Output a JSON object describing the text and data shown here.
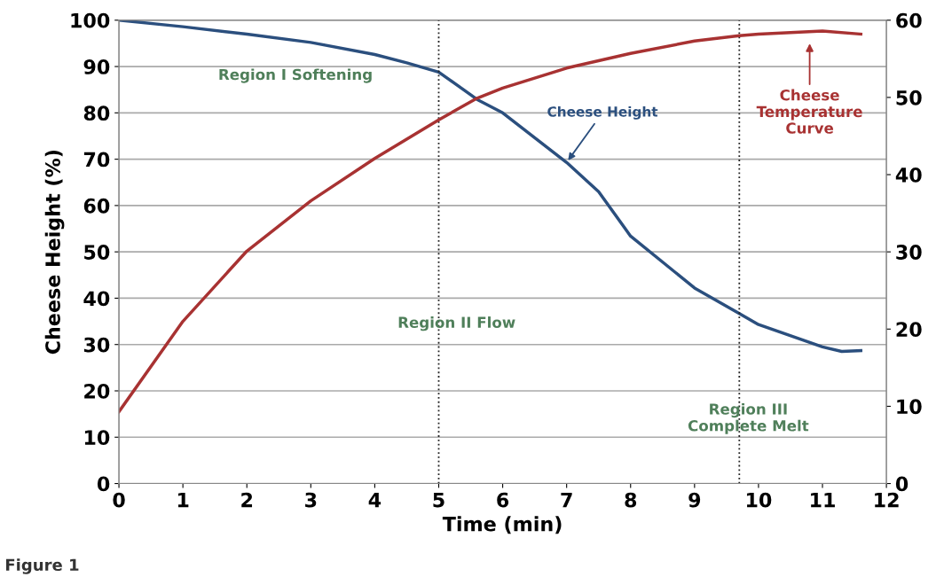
{
  "chart_data": {
    "type": "line",
    "xlabel": "Time (min)",
    "ylabel": "Cheese Height (%)",
    "xlim": [
      0,
      12
    ],
    "xticks": [
      0,
      1,
      2,
      3,
      4,
      5,
      6,
      7,
      8,
      9,
      10,
      11,
      12
    ],
    "ylim": [
      0,
      100
    ],
    "yticks": [
      0,
      10,
      20,
      30,
      40,
      50,
      60,
      70,
      80,
      90,
      100
    ],
    "y2lim": [
      0,
      60
    ],
    "y2ticks": [
      0,
      10,
      20,
      30,
      40,
      50,
      60
    ],
    "grid": "y",
    "legend": false,
    "marker": "none",
    "line_style": "solid",
    "series": [
      {
        "color": "#2b4f7e",
        "x": [
          0,
          1,
          2,
          3,
          4,
          4.5,
          5,
          5.6,
          6,
          7,
          7.5,
          8,
          9,
          9.7,
          10,
          11,
          11.3,
          11.6
        ],
        "values": [
          100,
          98.6,
          97,
          95.2,
          92.6,
          90.8,
          88.8,
          82.9,
          80,
          69.3,
          63,
          53.4,
          42.2,
          36.7,
          34.3,
          29.5,
          28.5,
          28.7
        ]
      },
      {
        "color": "#a83232",
        "axis": "y2",
        "x": [
          0,
          1,
          2,
          3,
          4,
          5,
          5.6,
          6,
          7,
          8,
          9,
          9.7,
          10,
          11,
          11.6
        ],
        "values": [
          9.3,
          21,
          30.1,
          36.6,
          42.1,
          47.1,
          49.9,
          51.2,
          53.8,
          55.7,
          57.3,
          58,
          58.2,
          58.6,
          58.2
        ]
      }
    ],
    "ref_lines": [
      {
        "axis": "x",
        "value": 5,
        "line_style": "dotted",
        "color": "#222222"
      },
      {
        "axis": "x",
        "value": 9.7,
        "line_style": "dotted",
        "color": "#222222"
      }
    ],
    "annotations": [
      "Region I Softening",
      "Region II Flow",
      "Region III\nComplete Melt",
      {
        "text": "Cheese Height",
        "x": 7,
        "y": 69.3
      },
      "Cheese\nTemperature\nCurve",
      "Figure 1"
    ]
  }
}
